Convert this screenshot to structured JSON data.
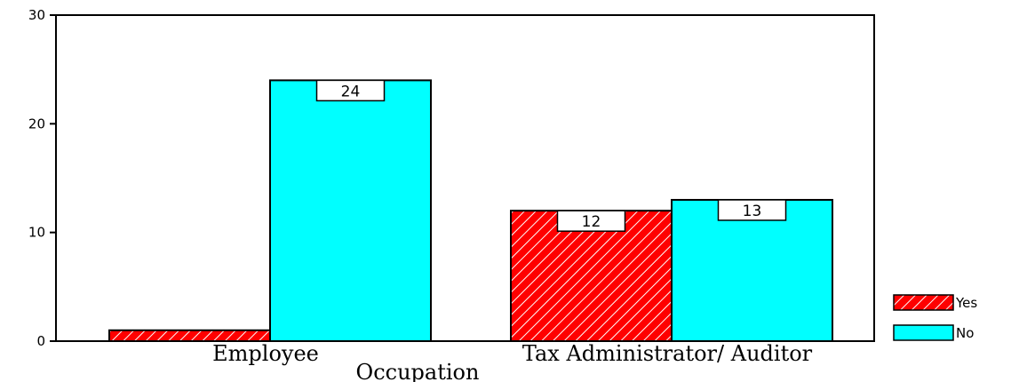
{
  "chart_data": {
    "type": "bar",
    "categories": [
      "Employee",
      "Tax Administrator/ Auditor"
    ],
    "series": [
      {
        "name": "Yes",
        "values": [
          1,
          12
        ],
        "color": "#ff0000",
        "pattern": "diagonal-hatch"
      },
      {
        "name": "No",
        "values": [
          24,
          13
        ],
        "color": "#00ffff",
        "pattern": "solid"
      }
    ],
    "data_labels": [
      {
        "category": "Tax Administrator/ Auditor",
        "series": "Yes",
        "text": "12"
      },
      {
        "category": "Employee",
        "series": "No",
        "text": "24"
      },
      {
        "category": "Tax Administrator/ Auditor",
        "series": "No",
        "text": "13"
      }
    ],
    "title": "",
    "xlabel": "Occupation",
    "ylabel": "",
    "ylim": [
      0,
      30
    ],
    "yticks": [
      "0",
      "10",
      "20",
      "30"
    ],
    "grid": false,
    "legend_position": "bottom-right"
  }
}
